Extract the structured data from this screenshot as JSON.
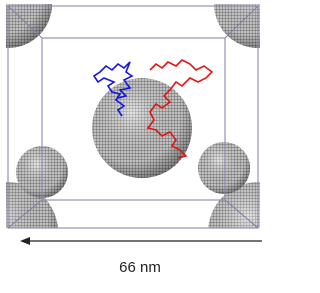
{
  "scale_label": "66 nm"
}
